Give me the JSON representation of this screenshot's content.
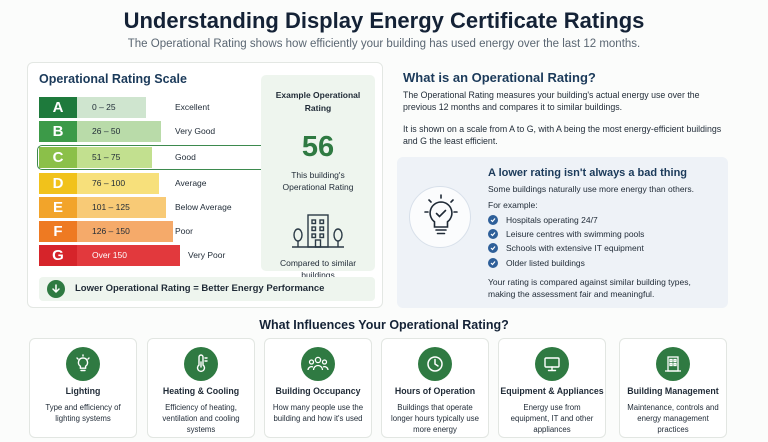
{
  "header": {
    "title": "Understanding Display Energy Certificate Ratings",
    "subtitle": "The Operational Rating shows how efficiently your building has used energy over the last 12 months."
  },
  "scale": {
    "title": "Operational Rating Scale",
    "bands": [
      {
        "letter": "A",
        "range": "0 – 25",
        "label": "Excellent",
        "color": "#1e7a3c",
        "light": "#cfe5cf"
      },
      {
        "letter": "B",
        "range": "26 – 50",
        "label": "Very Good",
        "color": "#3c9a48",
        "light": "#b9dba9"
      },
      {
        "letter": "C",
        "range": "51 – 75",
        "label": "Good",
        "color": "#8bc049",
        "light": "#c2e08f"
      },
      {
        "letter": "D",
        "range": "76 – 100",
        "label": "Average",
        "color": "#f1c21b",
        "light": "#f7e07b"
      },
      {
        "letter": "E",
        "range": "101 – 125",
        "label": "Below Average",
        "color": "#f2a42a",
        "light": "#f8ca76"
      },
      {
        "letter": "F",
        "range": "126 – 150",
        "label": "Poor",
        "color": "#ee7a22",
        "light": "#f5aa6a"
      },
      {
        "letter": "G",
        "range": "Over 150",
        "label": "Very Poor",
        "color": "#d6242a",
        "light": "#e2393d"
      }
    ],
    "footer": "Lower Operational Rating = Better Energy Performance"
  },
  "example": {
    "title": "Example Operational Rating",
    "value": "56",
    "desc": "This building's Operational Rating",
    "compare": "Compared to similar buildings"
  },
  "what": {
    "title": "What is an Operational Rating?",
    "p1": "The Operational Rating measures your building's actual energy use over the previous 12 months and compares it to similar buildings.",
    "p2": "It is shown on a scale from A to G, with A being the most energy-efficient buildings and G the least efficient."
  },
  "lower": {
    "title": "A lower rating isn't always a bad thing",
    "text": "Some buildings naturally use more energy than others.",
    "example_label": "For example:",
    "items": [
      "Hospitals operating 24/7",
      "Leisure centres with swimming pools",
      "Schools with extensive IT equipment",
      "Older listed buildings"
    ],
    "footer": "Your rating is compared against similar building types, making the assessment fair and meaningful."
  },
  "influences": {
    "title": "What Influences Your Operational Rating?",
    "cards": [
      {
        "icon": "lightbulb-icon",
        "title": "Lighting",
        "desc": "Type and efficiency of lighting systems"
      },
      {
        "icon": "thermometer-icon",
        "title": "Heating & Cooling",
        "desc": "Efficiency of heating, ventilation and cooling systems"
      },
      {
        "icon": "people-icon",
        "title": "Building Occupancy",
        "desc": "How many people use the building and how it's used"
      },
      {
        "icon": "clock-icon",
        "title": "Hours of Operation",
        "desc": "Buildings that operate longer hours typically use more energy"
      },
      {
        "icon": "monitor-icon",
        "title": "Equipment & Appliances",
        "desc": "Energy use from equipment, IT and other appliances"
      },
      {
        "icon": "building-icon",
        "title": "Building Management",
        "desc": "Maintenance, controls and energy management practices"
      }
    ]
  },
  "colors": {
    "accent_green": "#2f7a42",
    "accent_blue": "#2e5f99",
    "heading_blue": "#1b3a5a"
  }
}
